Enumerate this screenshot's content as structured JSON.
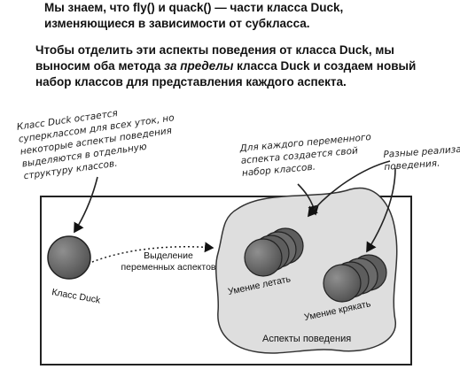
{
  "text": {
    "p1_line1": "Мы знаем, что fly() и quack() — части класса Duck,",
    "p1_line2": "изменяющиеся в зависимости от субкласса.",
    "p2_line1": "Чтобы отделить эти аспекты поведения от класса Duck, мы",
    "p2_line2_a": "выносим оба метода ",
    "p2_line2_em": "за пределы",
    "p2_line2_b": " класса Duck и создаем новый",
    "p2_line3": "набор классов для представления каждого аспекта."
  },
  "notes": {
    "left": [
      "Класс Duck остается",
      "суперклассом для всех уток, но",
      "некоторые аспекты поведения",
      "выделяются в отдельную",
      "структуру классов."
    ],
    "middle": [
      "Для каждого переменного",
      "аспекта создается свой",
      "набор классов."
    ],
    "right": [
      "Разные реализации",
      "поведения."
    ]
  },
  "diagram": {
    "duck_class_label": "Класс Duck",
    "separation_label_line1": "Выделение",
    "separation_label_line2": "переменных аспектов",
    "fly_label": "Умение летать",
    "quack_label": "Умение крякать",
    "behaviors_label": "Аспекты поведения"
  },
  "colors": {
    "ball": "#6d6d6d",
    "blob": "#dedede",
    "ink": "#111111"
  }
}
